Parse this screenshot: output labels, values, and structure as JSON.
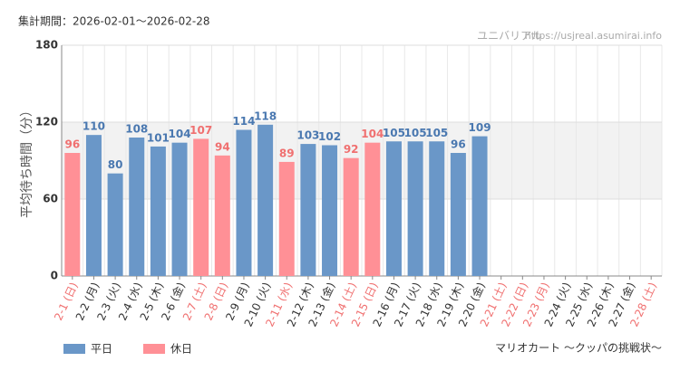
{
  "chart_data": {
    "type": "bar",
    "period": "集計期間：2026-02-01～2026-02-28",
    "source": "ユニバリアル",
    "url": "https://usjreal.asumirai.info",
    "ylabel": "平均待ち時間（分）",
    "subtitle": "マリオカート ～クッパの挑戦状～",
    "categories": [
      "2-1 (日)",
      "2-2 (月)",
      "2-3 (火)",
      "2-4 (水)",
      "2-5 (木)",
      "2-6 (金)",
      "2-7 (土)",
      "2-8 (日)",
      "2-9 (月)",
      "2-10 (火)",
      "2-11 (水)",
      "2-12 (木)",
      "2-13 (金)",
      "2-14 (土)",
      "2-15 (日)",
      "2-16 (月)",
      "2-17 (火)",
      "2-18 (水)",
      "2-19 (木)",
      "2-20 (金)",
      "2-21 (土)",
      "2-22 (日)",
      "2-23 (月)",
      "2-24 (火)",
      "2-25 (水)",
      "2-26 (木)",
      "2-27 (金)",
      "2-28 (土)"
    ],
    "category_label_colors": [
      "#f07070",
      "#333",
      "#333",
      "#333",
      "#333",
      "#333",
      "#f07070",
      "#f07070",
      "#333",
      "#333",
      "#f07070",
      "#333",
      "#333",
      "#f07070",
      "#f07070",
      "#333",
      "#333",
      "#333",
      "#333",
      "#333",
      "#f07070",
      "#f07070",
      "#f07070",
      "#333",
      "#333",
      "#333",
      "#333",
      "#f07070"
    ],
    "series": [
      {
        "name": "平日",
        "color": "#6a97c8",
        "label_color": "#4a78b0",
        "values": [
          null,
          110,
          80,
          108,
          101,
          104,
          null,
          null,
          114,
          118,
          null,
          103,
          102,
          null,
          null,
          105,
          105,
          105,
          96,
          109,
          null,
          null,
          null,
          null,
          null,
          null,
          null,
          null
        ]
      },
      {
        "name": "休日",
        "color": "#ff9096",
        "label_color": "#f07070",
        "values": [
          96,
          null,
          null,
          null,
          null,
          null,
          107,
          94,
          null,
          null,
          89,
          null,
          null,
          92,
          104,
          null,
          null,
          null,
          null,
          null,
          null,
          null,
          null,
          null,
          null,
          null,
          null,
          null
        ]
      }
    ],
    "ylim": [
      0,
      180
    ],
    "yticks": [
      0,
      60,
      120,
      180
    ],
    "shaded_range": [
      60,
      120
    ],
    "grid": true
  }
}
